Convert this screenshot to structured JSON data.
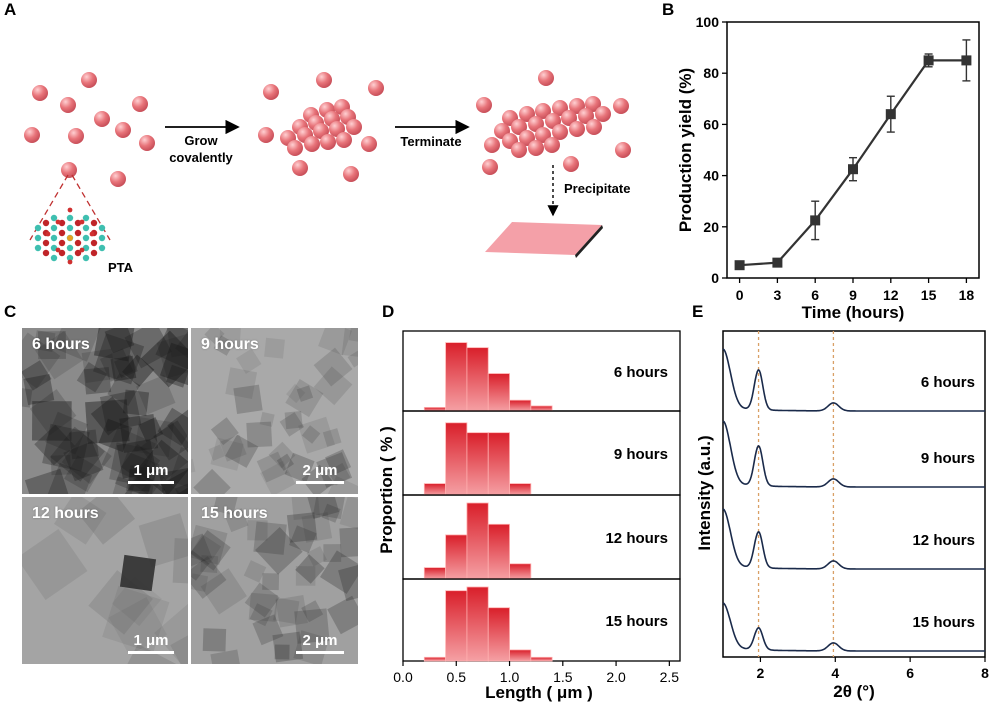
{
  "panels": {
    "A": {
      "letter": "A",
      "arrow1_label_line1": "Grow",
      "arrow1_label_line2": "covalently",
      "arrow2_label": "Terminate",
      "arrow3_label": "Precipitate",
      "molecule_label": "PTA",
      "particle_color": "#e8747a",
      "sheet_color": "#f4a0a8"
    },
    "B": {
      "letter": "B",
      "line_color": "#333333"
    },
    "C": {
      "letter": "C",
      "images": [
        {
          "label": "6 hours",
          "scale": "1 μm"
        },
        {
          "label": "9 hours",
          "scale": "2 μm"
        },
        {
          "label": "12 hours",
          "scale": "1 μm"
        },
        {
          "label": "15 hours",
          "scale": "2 μm"
        }
      ]
    },
    "D": {
      "letter": "D",
      "bar_color": "#e8353c"
    },
    "E": {
      "letter": "E",
      "line_color": "#1a2a4a",
      "marker_line_color": "#d9a066"
    }
  },
  "chart_data": [
    {
      "type": "line",
      "xlabel": "Time (hours)",
      "ylabel": "Production yield (%)",
      "x": [
        0,
        3,
        6,
        9,
        12,
        15,
        18
      ],
      "xticks": [
        "0",
        "3",
        "6",
        "9",
        "12",
        "15",
        "18"
      ],
      "y": [
        5,
        6,
        22.5,
        42.5,
        64,
        85,
        85
      ],
      "yerr": [
        1.5,
        1,
        7.5,
        4.5,
        7,
        2.5,
        8
      ],
      "yticks": [
        "0",
        "20",
        "40",
        "60",
        "80",
        "100"
      ],
      "xlim": [
        -1,
        19
      ],
      "ylim": [
        0,
        100
      ]
    },
    {
      "type": "bar",
      "xlabel": "Length ( μm )",
      "ylabel": "Proportion ( % )",
      "bin_edges": [
        0.2,
        0.4,
        0.6,
        0.8,
        1.0,
        1.2,
        1.4
      ],
      "xticks": [
        "0.0",
        "0.5",
        "1.0",
        "1.5",
        "2.0",
        "2.5"
      ],
      "xlim": [
        0,
        2.6
      ],
      "series": [
        {
          "name": "6 hours",
          "values": [
            0.05,
            0.95,
            0.88,
            0.52,
            0.15,
            0.07
          ]
        },
        {
          "name": "9 hours",
          "values": [
            0.15,
            0.95,
            0.82,
            0.82,
            0.15,
            0
          ]
        },
        {
          "name": "12 hours",
          "values": [
            0.15,
            0.58,
            1.0,
            0.72,
            0.2,
            0
          ]
        },
        {
          "name": "15 hours",
          "values": [
            0.05,
            0.95,
            1.0,
            0.72,
            0.15,
            0.05
          ]
        }
      ]
    },
    {
      "type": "line",
      "xlabel": "2θ (°)",
      "ylabel": "Intensity (a.u.)",
      "xticks": [
        "2",
        "4",
        "6",
        "8"
      ],
      "xlim": [
        1,
        8
      ],
      "reference_lines_x": [
        1.95,
        3.95
      ],
      "series": [
        {
          "name": "6 hours"
        },
        {
          "name": "9 hours"
        },
        {
          "name": "12 hours"
        },
        {
          "name": "15 hours"
        }
      ]
    }
  ]
}
